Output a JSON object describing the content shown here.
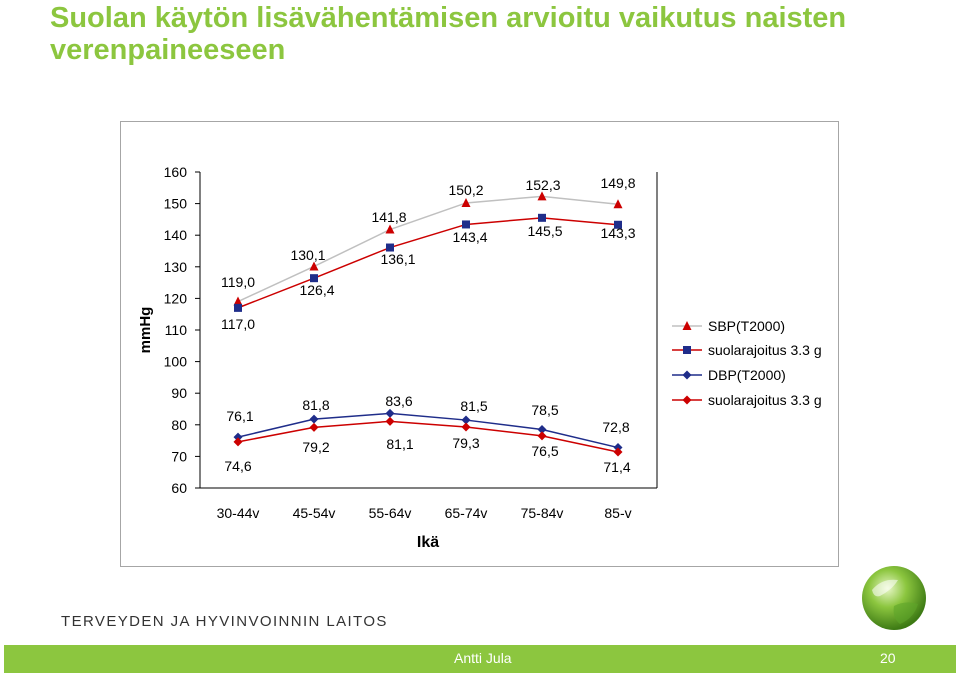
{
  "slide": {
    "title": "Suolan käytön lisävähentämisen arvioitu vaikutus naisten verenpaineeseen",
    "org": "TERVEYDEN JA HYVINVOINNIN LAITOS",
    "author": "Antti Jula",
    "page": "20",
    "accent_color": "#8cc63f"
  },
  "chart_data": {
    "type": "line",
    "xlabel": "Ikä",
    "ylabel": "mmHg",
    "ylim": [
      60,
      160
    ],
    "yticks": [
      "60",
      "70",
      "80",
      "90",
      "100",
      "110",
      "120",
      "130",
      "140",
      "150",
      "160"
    ],
    "categories": [
      "30-44v",
      "45-54v",
      "55-64v",
      "65-74v",
      "75-84v",
      "85-v"
    ],
    "legend_position": "right",
    "grid": false,
    "series": [
      {
        "name": "SBP(T2000)",
        "values": [
          119.0,
          130.1,
          141.8,
          150.2,
          152.3,
          149.8
        ],
        "labels": [
          "119,0",
          "130,1",
          "141,8",
          "150,2",
          "152,3",
          "149,8"
        ],
        "color": "#cc0000",
        "line_color": "#c0c0c0",
        "marker": "triangle"
      },
      {
        "name": "suolarajoitus 3.3 g",
        "values": [
          117.0,
          126.4,
          136.1,
          143.4,
          145.5,
          143.3
        ],
        "labels": [
          "117,0",
          "126,4",
          "136,1",
          "143,4",
          "145,5",
          "143,3"
        ],
        "color": "#1f2d8a",
        "line_color": "#cc0000",
        "marker": "square"
      },
      {
        "name": "DBP(T2000)",
        "values": [
          76.1,
          81.8,
          83.6,
          81.5,
          78.5,
          72.8
        ],
        "labels": [
          "76,1",
          "81,8",
          "83,6",
          "81,5",
          "78,5",
          "72,8"
        ],
        "color": "#1f2d8a",
        "line_color": "#1f2d8a",
        "marker": "diamond"
      },
      {
        "name": "suolarajoitus 3.3 g",
        "values": [
          74.6,
          79.2,
          81.1,
          79.3,
          76.5,
          71.4
        ],
        "labels": [
          "74,6",
          "79,2",
          "81,1",
          "79,3",
          "76,5",
          "71,4"
        ],
        "color": "#cc0000",
        "line_color": "#cc0000",
        "marker": "diamond"
      }
    ]
  }
}
